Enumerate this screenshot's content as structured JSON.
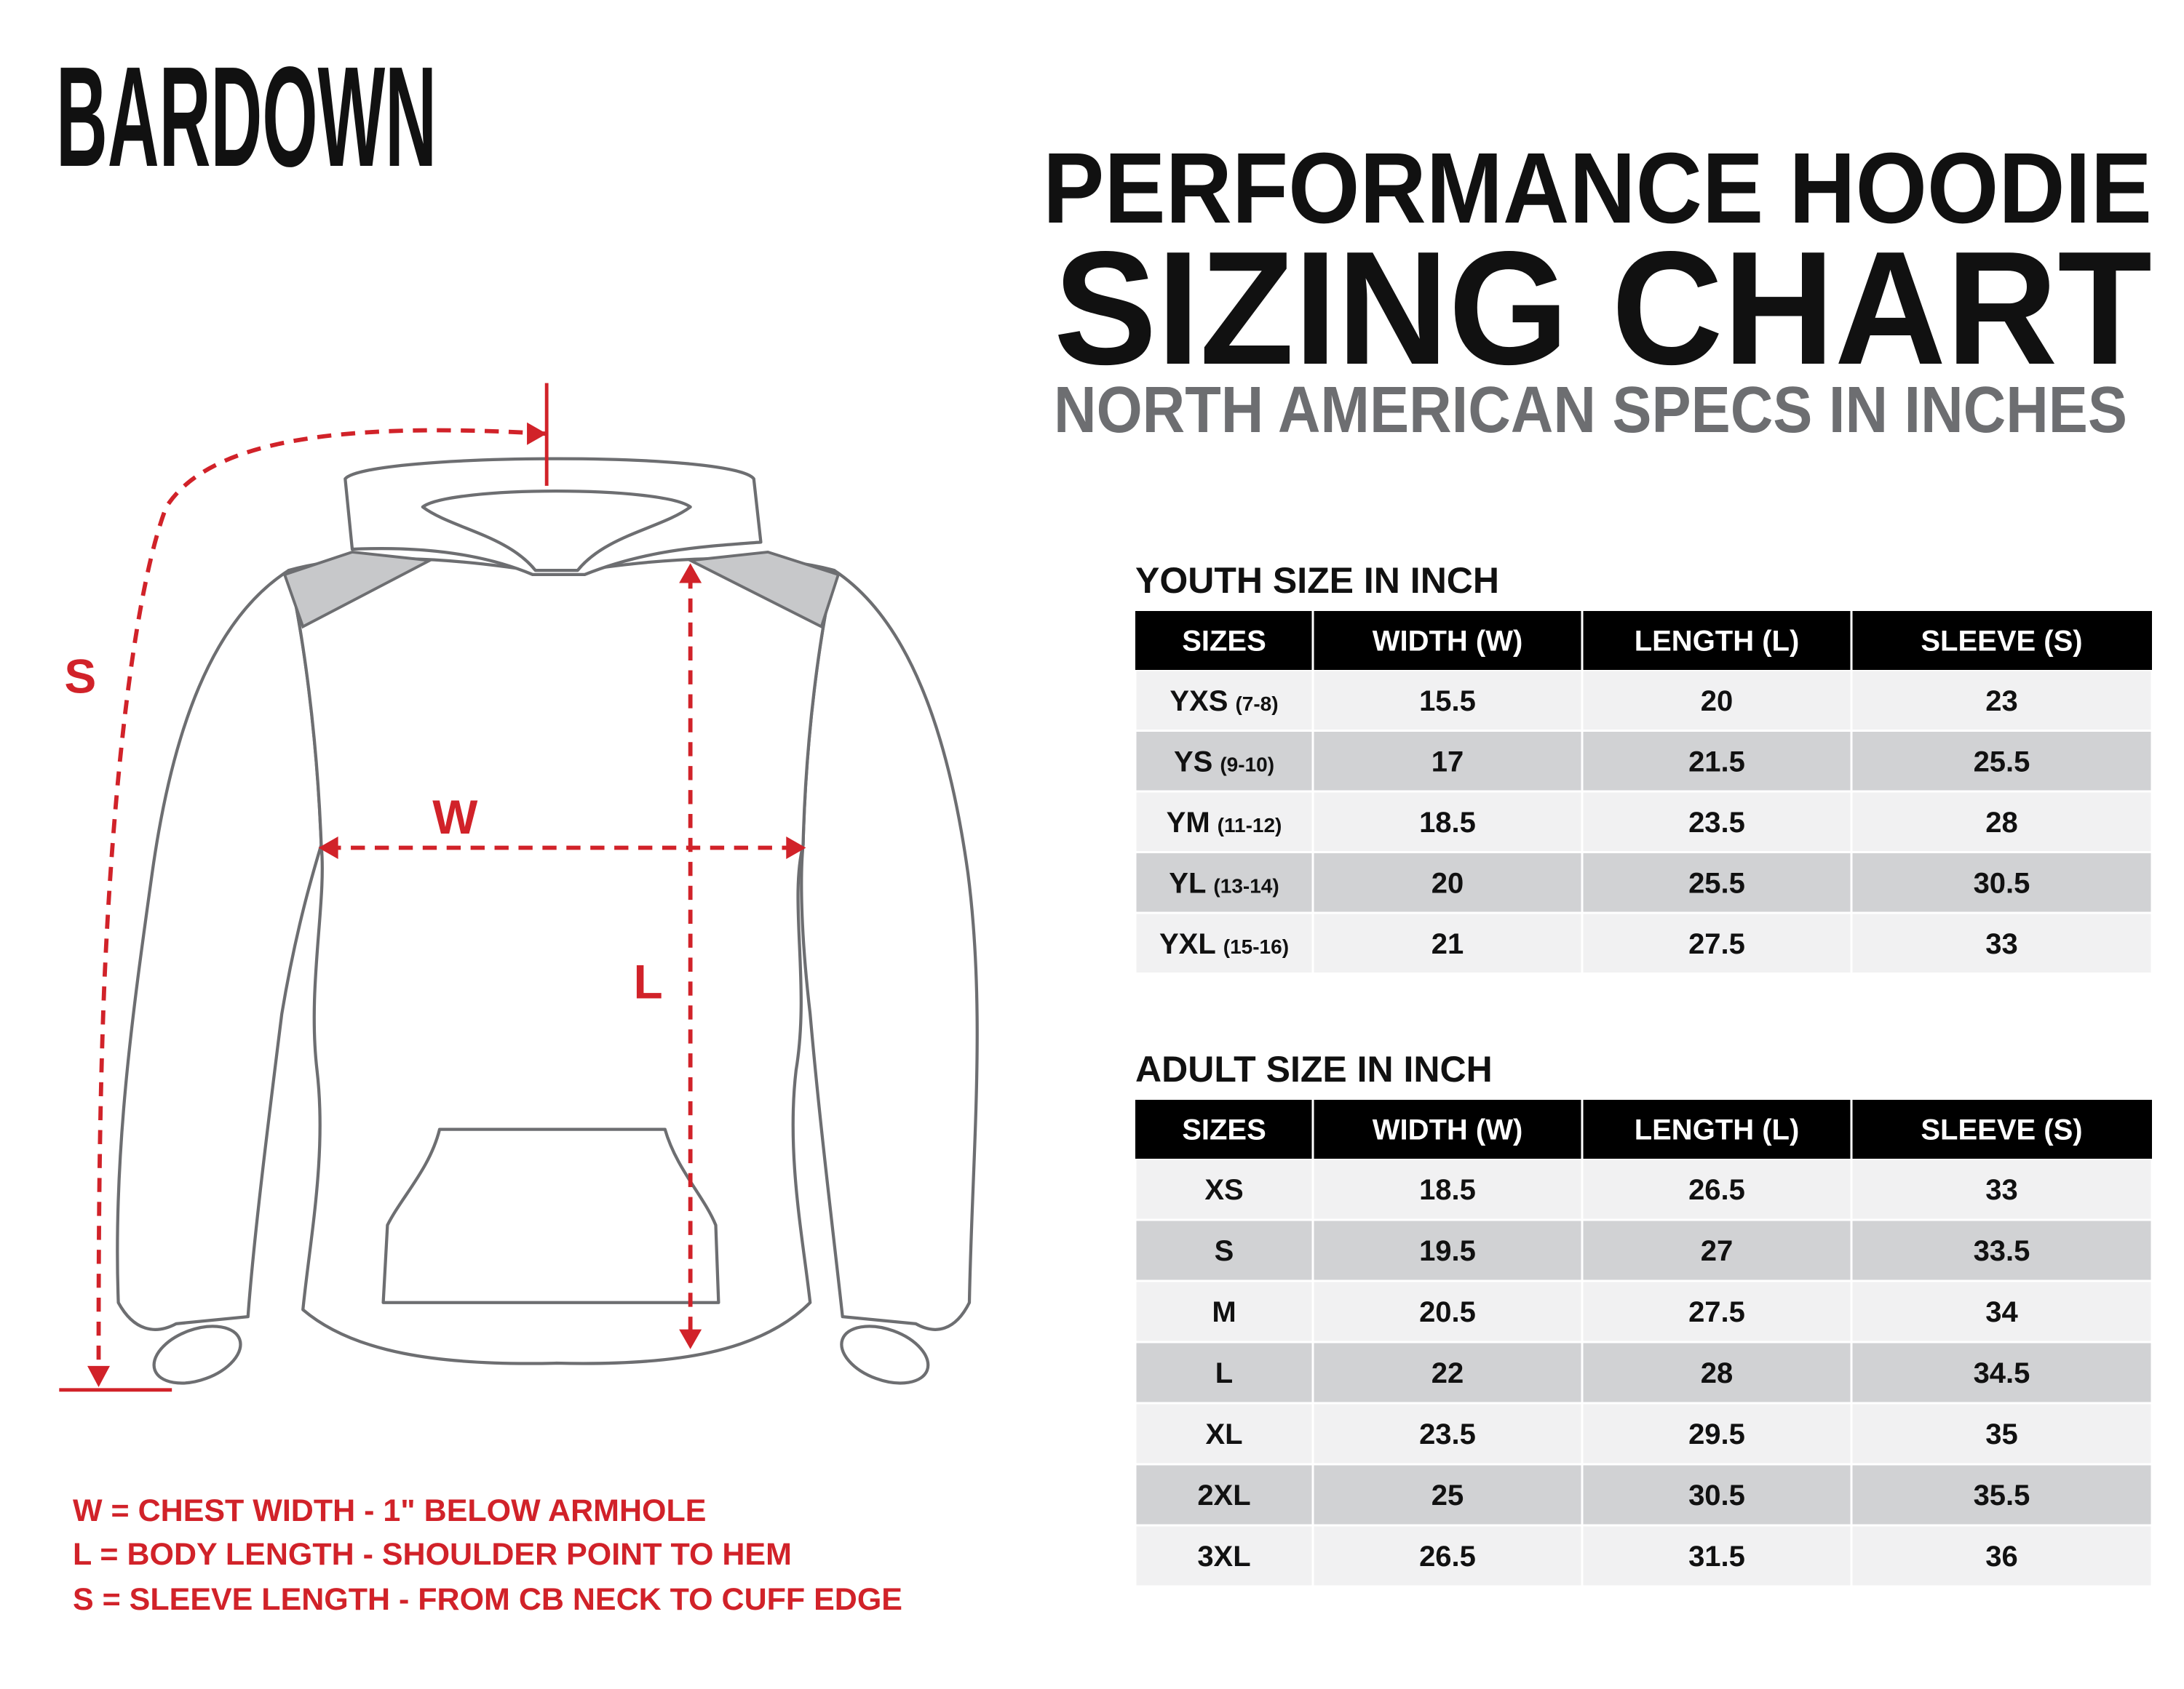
{
  "brand": "BARDOWN",
  "title": {
    "line1": "PERFORMANCE HOODIE",
    "line2": "SIZING CHART",
    "subtitle": "NORTH AMERICAN SPECS IN INCHES"
  },
  "diagram": {
    "s_label": "S",
    "w_label": "W",
    "l_label": "L"
  },
  "legend": [
    "W = CHEST WIDTH - 1\" BELOW ARMHOLE",
    "L = BODY LENGTH - SHOULDER POINT TO HEM",
    "S = SLEEVE LENGTH - FROM CB NECK TO CUFF EDGE"
  ],
  "tables": [
    {
      "heading": "YOUTH SIZE IN INCH",
      "header": [
        "SIZES",
        "WIDTH (W)",
        "LENGTH (L)",
        "SLEEVE (S)"
      ],
      "rows": [
        [
          {
            "size": "YXS",
            "age": "(7-8)"
          },
          15.5,
          20,
          23
        ],
        [
          {
            "size": "YS",
            "age": "(9-10)"
          },
          17,
          21.5,
          25.5
        ],
        [
          {
            "size": "YM",
            "age": "(11-12)"
          },
          18.5,
          23.5,
          28
        ],
        [
          {
            "size": "YL",
            "age": "(13-14)"
          },
          20,
          25.5,
          30.5
        ],
        [
          {
            "size": "YXL",
            "age": "(15-16)"
          },
          21,
          27.5,
          33
        ]
      ]
    },
    {
      "heading": "ADULT SIZE IN INCH",
      "header": [
        "SIZES",
        "WIDTH (W)",
        "LENGTH (L)",
        "SLEEVE (S)"
      ],
      "rows": [
        [
          "XS",
          18.5,
          26.5,
          33
        ],
        [
          "S",
          19.5,
          27,
          33.5
        ],
        [
          "M",
          20.5,
          27.5,
          34
        ],
        [
          "L",
          22,
          28,
          34.5
        ],
        [
          "XL",
          23.5,
          29.5,
          35
        ],
        [
          "2XL",
          25,
          30.5,
          35.5
        ],
        [
          "3XL",
          26.5,
          31.5,
          36
        ]
      ]
    }
  ]
}
